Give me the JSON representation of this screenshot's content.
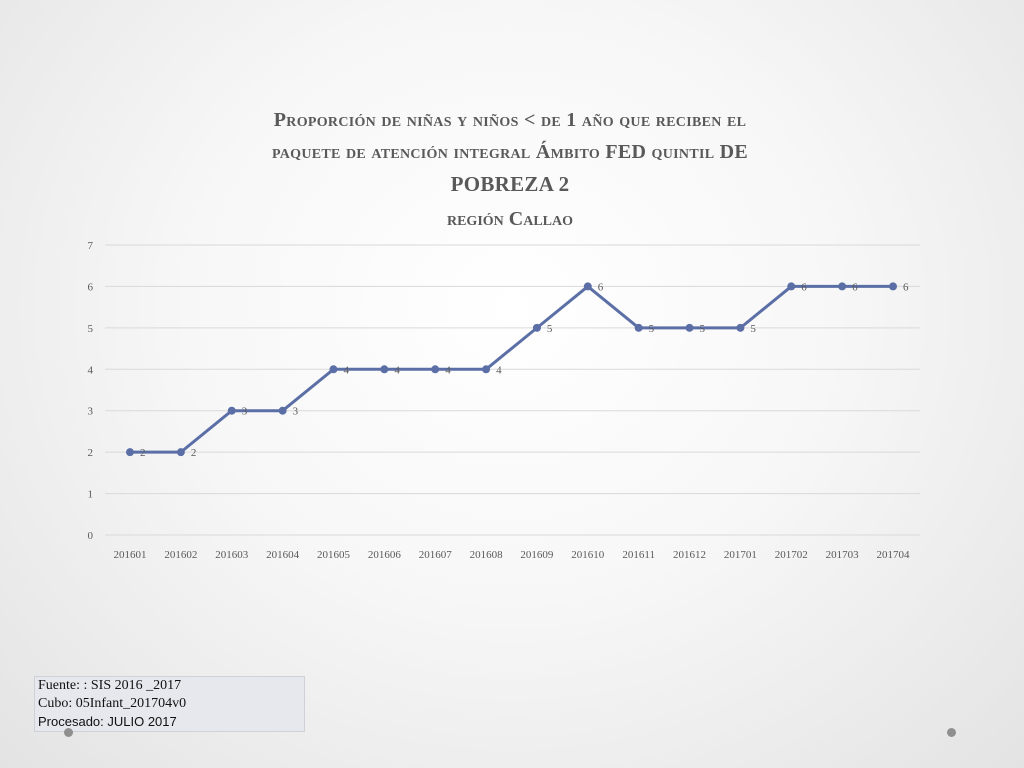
{
  "title": {
    "line1": "Proporción de niñas y niños < de 1 año que reciben el",
    "line2": "paquete de atención integral Ámbito FED quintil DE",
    "line3": "POBREZA  2",
    "subtitle": "región Callao"
  },
  "source": {
    "line1": "Fuente: : SIS 2016 _2017",
    "line2": "Cubo: 05Infant_201704v0",
    "line3": "Procesado: JULIO 2017"
  },
  "colors": {
    "series": "#5b6fa6",
    "grid": "#d9d9d9",
    "text": "#595959"
  },
  "chart_data": {
    "type": "line",
    "categories": [
      "201601",
      "201602",
      "201603",
      "201604",
      "201605",
      "201606",
      "201607",
      "201608",
      "201609",
      "201610",
      "201611",
      "201612",
      "201701",
      "201702",
      "201703",
      "201704"
    ],
    "series": [
      {
        "values": [
          2,
          2,
          3,
          3,
          4,
          4,
          4,
          4,
          5,
          6,
          5,
          5,
          5,
          6,
          6,
          6
        ]
      }
    ],
    "ylim": [
      0,
      7
    ],
    "yticks": [
      0,
      1,
      2,
      3,
      4,
      5,
      6,
      7
    ],
    "data_labels": true,
    "grid": true,
    "legend": "none",
    "xlabel": "",
    "ylabel": ""
  }
}
